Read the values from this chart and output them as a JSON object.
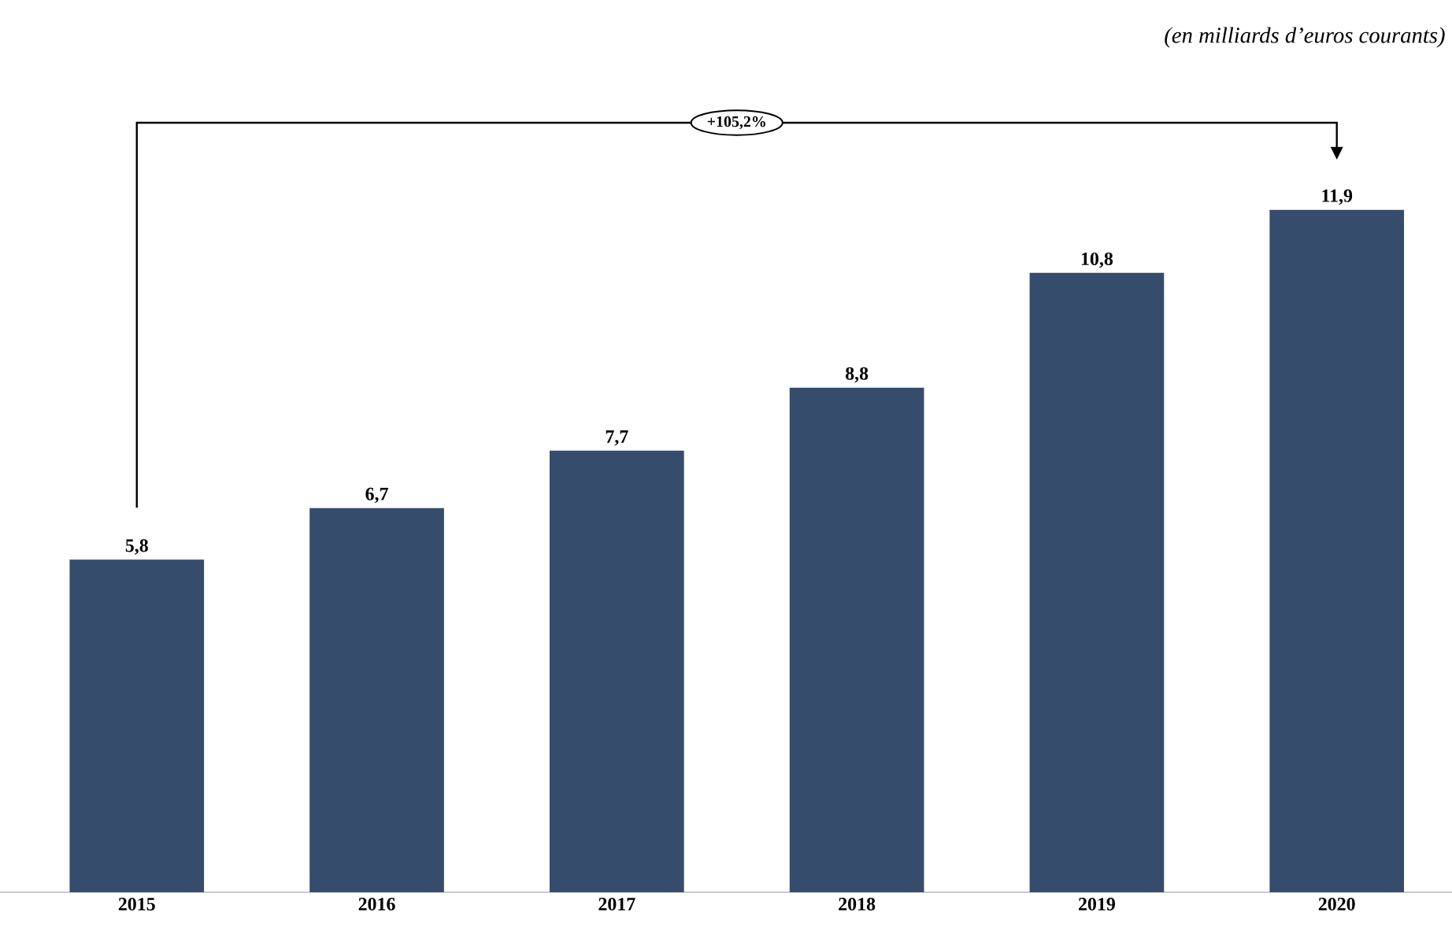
{
  "chart_data": {
    "type": "bar",
    "subtitle": "*(en milliards d’euros courants)*",
    "categories": [
      "2015",
      "2016",
      "2017",
      "2018",
      "2019",
      "2020"
    ],
    "values": [
      5.8,
      6.7,
      7.7,
      8.8,
      10.8,
      11.9
    ],
    "value_labels": [
      "5,8",
      "6,7",
      "7,7",
      "8,8",
      "10,8",
      "11,9"
    ],
    "color": "#364c6c",
    "tick_labels": "x",
    "annotations": [
      "+105,2%"
    ]
  }
}
